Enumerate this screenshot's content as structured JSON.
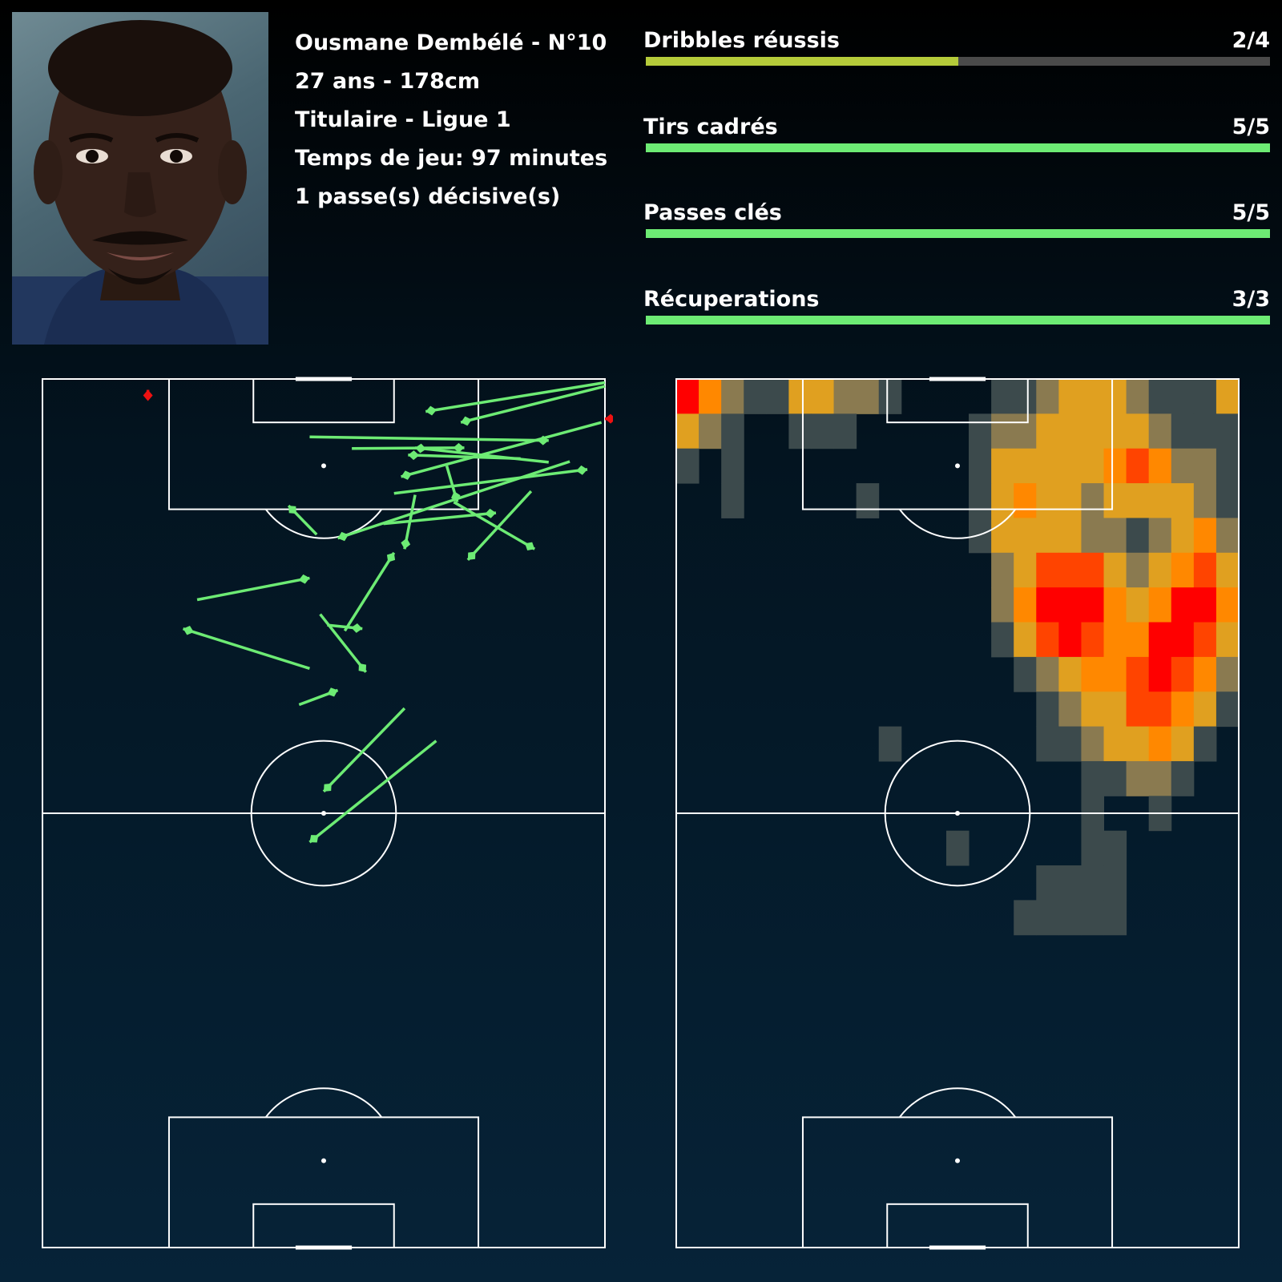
{
  "player": {
    "name_line": "Ousmane Dembélé - N°10",
    "age_height": "27 ans - 178cm",
    "role_league": "Titulaire - Ligue 1",
    "minutes": "Temps de jeu: 97 minutes",
    "assists": "1 passe(s) décisive(s)"
  },
  "stats": [
    {
      "label": "Dribbles réussis",
      "value": "2/4",
      "success": 2,
      "total": 4,
      "color": "#b5cb3a"
    },
    {
      "label": "Tirs cadrés",
      "value": "5/5",
      "success": 5,
      "total": 5,
      "color": "#6deb74"
    },
    {
      "label": "Passes clés",
      "value": "5/5",
      "success": 5,
      "total": 5,
      "color": "#6deb74"
    },
    {
      "label": "Récuperations",
      "value": "3/3",
      "success": 3,
      "total": 3,
      "color": "#6deb74"
    }
  ],
  "colors": {
    "success_pass": "#6deb74",
    "failed_pass": "#ee1111",
    "pitch_lines": "#ffffff",
    "track": "#4a4a4a"
  },
  "chart_data": [
    {
      "type": "scatter",
      "pitch": {
        "length": 120,
        "width": 80
      },
      "passes": [
        {
          "from": [
            119.0,
            80.0
          ],
          "to": [
            114.0,
            59.5
          ],
          "success": true
        },
        {
          "from": [
            112.0,
            38.0
          ],
          "to": [
            111.5,
            72.0
          ],
          "success": true
        },
        {
          "from": [
            108.6,
            75.0
          ],
          "to": [
            98.0,
            42.0
          ],
          "success": true
        },
        {
          "from": [
            104.2,
            50.0
          ],
          "to": [
            107.5,
            77.5
          ],
          "success": true
        },
        {
          "from": [
            98.5,
            39.0
          ],
          "to": [
            102.5,
            35.0
          ],
          "success": true
        },
        {
          "from": [
            108.5,
            72.0
          ],
          "to": [
            110.5,
            53.0
          ],
          "success": true
        },
        {
          "from": [
            103.0,
            58.5
          ],
          "to": [
            96.5,
            70.0
          ],
          "success": true
        },
        {
          "from": [
            86.0,
            40.5
          ],
          "to": [
            85.5,
            45.5
          ],
          "success": true
        },
        {
          "from": [
            74.5,
            51.5
          ],
          "to": [
            63.0,
            40.0
          ],
          "success": true
        },
        {
          "from": [
            70.0,
            56.0
          ],
          "to": [
            56.0,
            38.0
          ],
          "success": true
        },
        {
          "from": [
            80.0,
            38.0
          ],
          "to": [
            85.5,
            20.0
          ],
          "success": true
        },
        {
          "from": [
            87.5,
            39.5
          ],
          "to": [
            79.5,
            46.0
          ],
          "success": true
        },
        {
          "from": [
            89.5,
            22.0
          ],
          "to": [
            92.5,
            38.0
          ],
          "success": true
        },
        {
          "from": [
            108.0,
            57.5
          ],
          "to": [
            103.0,
            59.0
          ],
          "success": true
        },
        {
          "from": [
            75.0,
            36.5
          ],
          "to": [
            77.0,
            42.0
          ],
          "success": true
        },
        {
          "from": [
            85.2,
            43.0
          ],
          "to": [
            96.0,
            50.0
          ],
          "success": true
        },
        {
          "from": [
            110.4,
            44.0
          ],
          "to": [
            110.5,
            60.0
          ],
          "success": true
        },
        {
          "from": [
            104.0,
            53.0
          ],
          "to": [
            96.5,
            51.5
          ],
          "success": true
        },
        {
          "from": [
            118.0,
            15.0
          ],
          "to": [
            118.5,
            15.0
          ],
          "success": false
        },
        {
          "from": [
            114.5,
            81.0
          ],
          "to": [
            114.5,
            80.0
          ],
          "success": false
        }
      ],
      "passes_visible_sample": [
        {
          "from": [
            119.5,
            80.0
          ],
          "to": [
            115.5,
            54.5
          ]
        },
        {
          "from": [
            114.0,
            79.5
          ],
          "to": [
            106.5,
            51.0
          ]
        },
        {
          "from": [
            109.0,
            68.0
          ],
          "to": [
            109.5,
            52.0
          ]
        },
        {
          "from": [
            104.5,
            69.5
          ],
          "to": [
            95.0,
            60.5
          ]
        },
        {
          "from": [
            100.0,
            48.5
          ],
          "to": [
            101.5,
            64.5
          ]
        }
      ]
    },
    {
      "type": "heatmap",
      "pitch": {
        "length": 120,
        "width": 80
      },
      "grid": {
        "cols": 25,
        "rows": 25
      },
      "scale": [
        "#3c4a4c",
        "#8a7a50",
        "#e0a020",
        "#ff8800",
        "#ff4400",
        "#ff0000"
      ],
      "cells": [
        [
          0,
          0,
          5
        ],
        [
          1,
          0,
          3
        ],
        [
          2,
          0,
          1
        ],
        [
          3,
          0,
          0
        ],
        [
          4,
          0,
          0
        ],
        [
          5,
          0,
          2
        ],
        [
          6,
          0,
          2
        ],
        [
          7,
          0,
          1
        ],
        [
          8,
          0,
          1
        ],
        [
          9,
          0,
          0
        ],
        [
          14,
          0,
          0
        ],
        [
          15,
          0,
          0
        ],
        [
          16,
          0,
          1
        ],
        [
          17,
          0,
          2
        ],
        [
          18,
          0,
          2
        ],
        [
          19,
          0,
          2
        ],
        [
          20,
          0,
          1
        ],
        [
          21,
          0,
          0
        ],
        [
          22,
          0,
          0
        ],
        [
          23,
          0,
          0
        ],
        [
          24,
          0,
          2
        ],
        [
          0,
          1,
          2
        ],
        [
          1,
          1,
          1
        ],
        [
          2,
          1,
          0
        ],
        [
          5,
          1,
          0
        ],
        [
          6,
          1,
          0
        ],
        [
          7,
          1,
          0
        ],
        [
          13,
          1,
          0
        ],
        [
          14,
          1,
          1
        ],
        [
          15,
          1,
          1
        ],
        [
          16,
          1,
          2
        ],
        [
          17,
          1,
          2
        ],
        [
          18,
          1,
          2
        ],
        [
          19,
          1,
          2
        ],
        [
          20,
          1,
          2
        ],
        [
          21,
          1,
          1
        ],
        [
          22,
          1,
          0
        ],
        [
          23,
          1,
          0
        ],
        [
          24,
          1,
          0
        ],
        [
          0,
          2,
          0
        ],
        [
          2,
          2,
          0
        ],
        [
          13,
          2,
          0
        ],
        [
          14,
          2,
          2
        ],
        [
          15,
          2,
          2
        ],
        [
          16,
          2,
          2
        ],
        [
          17,
          2,
          2
        ],
        [
          18,
          2,
          2
        ],
        [
          19,
          2,
          3
        ],
        [
          20,
          2,
          4
        ],
        [
          21,
          2,
          3
        ],
        [
          22,
          2,
          1
        ],
        [
          23,
          2,
          1
        ],
        [
          24,
          2,
          0
        ],
        [
          2,
          3,
          0
        ],
        [
          8,
          3,
          0
        ],
        [
          13,
          3,
          0
        ],
        [
          14,
          3,
          2
        ],
        [
          15,
          3,
          3
        ],
        [
          16,
          3,
          2
        ],
        [
          17,
          3,
          2
        ],
        [
          18,
          3,
          1
        ],
        [
          19,
          3,
          2
        ],
        [
          20,
          3,
          2
        ],
        [
          21,
          3,
          2
        ],
        [
          22,
          3,
          2
        ],
        [
          23,
          3,
          1
        ],
        [
          24,
          3,
          0
        ],
        [
          13,
          4,
          0
        ],
        [
          14,
          4,
          2
        ],
        [
          15,
          4,
          2
        ],
        [
          16,
          4,
          2
        ],
        [
          17,
          4,
          2
        ],
        [
          18,
          4,
          1
        ],
        [
          19,
          4,
          1
        ],
        [
          20,
          4,
          0
        ],
        [
          21,
          4,
          1
        ],
        [
          22,
          4,
          2
        ],
        [
          23,
          4,
          3
        ],
        [
          24,
          4,
          1
        ],
        [
          14,
          5,
          1
        ],
        [
          15,
          5,
          2
        ],
        [
          16,
          5,
          4
        ],
        [
          17,
          5,
          4
        ],
        [
          18,
          5,
          4
        ],
        [
          19,
          5,
          2
        ],
        [
          20,
          5,
          1
        ],
        [
          21,
          5,
          2
        ],
        [
          22,
          5,
          3
        ],
        [
          23,
          5,
          4
        ],
        [
          24,
          5,
          2
        ],
        [
          14,
          6,
          1
        ],
        [
          15,
          6,
          3
        ],
        [
          16,
          6,
          5
        ],
        [
          17,
          6,
          5
        ],
        [
          18,
          6,
          5
        ],
        [
          19,
          6,
          3
        ],
        [
          20,
          6,
          2
        ],
        [
          21,
          6,
          3
        ],
        [
          22,
          6,
          5
        ],
        [
          23,
          6,
          5
        ],
        [
          24,
          6,
          3
        ],
        [
          14,
          7,
          0
        ],
        [
          15,
          7,
          2
        ],
        [
          16,
          7,
          4
        ],
        [
          17,
          7,
          5
        ],
        [
          18,
          7,
          4
        ],
        [
          19,
          7,
          3
        ],
        [
          20,
          7,
          3
        ],
        [
          21,
          7,
          5
        ],
        [
          22,
          7,
          5
        ],
        [
          23,
          7,
          4
        ],
        [
          24,
          7,
          2
        ],
        [
          15,
          8,
          0
        ],
        [
          16,
          8,
          1
        ],
        [
          17,
          8,
          2
        ],
        [
          18,
          8,
          3
        ],
        [
          19,
          8,
          3
        ],
        [
          20,
          8,
          4
        ],
        [
          21,
          8,
          5
        ],
        [
          22,
          8,
          4
        ],
        [
          23,
          8,
          3
        ],
        [
          24,
          8,
          1
        ],
        [
          16,
          9,
          0
        ],
        [
          17,
          9,
          1
        ],
        [
          18,
          9,
          2
        ],
        [
          19,
          9,
          2
        ],
        [
          20,
          9,
          4
        ],
        [
          21,
          9,
          4
        ],
        [
          22,
          9,
          3
        ],
        [
          23,
          9,
          2
        ],
        [
          24,
          9,
          0
        ],
        [
          9,
          10,
          0
        ],
        [
          16,
          10,
          0
        ],
        [
          17,
          10,
          0
        ],
        [
          18,
          10,
          1
        ],
        [
          19,
          10,
          2
        ],
        [
          20,
          10,
          2
        ],
        [
          21,
          10,
          3
        ],
        [
          22,
          10,
          2
        ],
        [
          23,
          10,
          0
        ],
        [
          18,
          11,
          0
        ],
        [
          19,
          11,
          0
        ],
        [
          20,
          11,
          1
        ],
        [
          21,
          11,
          1
        ],
        [
          22,
          11,
          0
        ],
        [
          18,
          12,
          0
        ],
        [
          21,
          12,
          0
        ],
        [
          12,
          13,
          0
        ],
        [
          18,
          13,
          0
        ],
        [
          19,
          13,
          0
        ],
        [
          16,
          14,
          0
        ],
        [
          17,
          14,
          0
        ],
        [
          18,
          14,
          0
        ],
        [
          19,
          14,
          0
        ],
        [
          15,
          15,
          0
        ],
        [
          16,
          15,
          0
        ],
        [
          17,
          15,
          0
        ],
        [
          18,
          15,
          0
        ],
        [
          19,
          15,
          0
        ]
      ]
    }
  ]
}
